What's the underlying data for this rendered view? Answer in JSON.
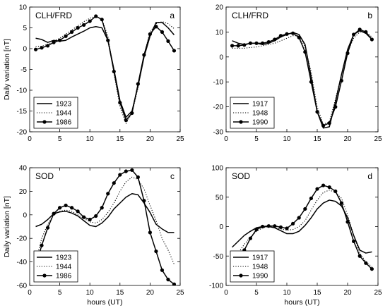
{
  "chart_data": [
    {
      "type": "line",
      "title": "CLH/FRD",
      "panel_label": "a",
      "xlabel": "",
      "ylabel": "Daily variation  [nT]",
      "xlim": [
        0,
        25
      ],
      "ylim": [
        -20,
        10
      ],
      "xticks": [
        0,
        5,
        10,
        15,
        20,
        25
      ],
      "yticks": [
        -20,
        -15,
        -10,
        -5,
        0,
        5,
        10
      ],
      "legend_position": "bottom-left",
      "series": [
        {
          "name": "1923",
          "style": "solid",
          "x": [
            1,
            2,
            3,
            4,
            5,
            6,
            7,
            8,
            9,
            10,
            11,
            12,
            13,
            14,
            15,
            16,
            17,
            18,
            19,
            20,
            21,
            22,
            23,
            24
          ],
          "values": [
            2.5,
            2.2,
            1.5,
            2.0,
            1.8,
            2.0,
            2.8,
            3.5,
            4.2,
            5.0,
            5.3,
            5.0,
            2.0,
            -5.0,
            -12.5,
            -16.5,
            -15.0,
            -9.0,
            -2.0,
            3.0,
            6.3,
            6.3,
            5.0,
            3.3
          ]
        },
        {
          "name": "1944",
          "style": "dotted",
          "x": [
            1,
            2,
            3,
            4,
            5,
            6,
            7,
            8,
            9,
            10,
            11,
            12,
            13,
            14,
            15,
            16,
            17,
            18,
            19,
            20,
            21,
            22,
            23,
            24
          ],
          "values": [
            0.5,
            0.6,
            1.0,
            1.8,
            2.5,
            3.5,
            4.5,
            5.5,
            6.5,
            7.3,
            7.8,
            7.0,
            3.0,
            -6.0,
            -14.0,
            -18.0,
            -15.5,
            -9.5,
            -1.5,
            4.0,
            6.0,
            6.5,
            6.0,
            4.8
          ]
        },
        {
          "name": "1986",
          "style": "solid-markers",
          "x": [
            1,
            2,
            3,
            4,
            5,
            6,
            7,
            8,
            9,
            10,
            11,
            12,
            13,
            14,
            15,
            16,
            17,
            18,
            19,
            20,
            21,
            22,
            23,
            24
          ],
          "values": [
            -0.2,
            0.2,
            0.7,
            1.5,
            2.0,
            3.0,
            4.0,
            5.0,
            5.7,
            6.6,
            7.8,
            7.0,
            2.0,
            -5.5,
            -13.0,
            -17.2,
            -15.5,
            -8.5,
            -1.5,
            3.5,
            5.3,
            4.0,
            1.8,
            -0.5
          ]
        }
      ]
    },
    {
      "type": "line",
      "title": "CLH/FRD",
      "panel_label": "b",
      "xlabel": "",
      "ylabel": "",
      "xlim": [
        0,
        25
      ],
      "ylim": [
        -30,
        20
      ],
      "xticks": [
        0,
        5,
        10,
        15,
        20,
        25
      ],
      "yticks": [
        -30,
        -20,
        -10,
        0,
        10,
        20
      ],
      "legend_position": "bottom-left",
      "series": [
        {
          "name": "1917",
          "style": "solid",
          "x": [
            1,
            2,
            3,
            4,
            5,
            6,
            7,
            8,
            9,
            10,
            11,
            12,
            13,
            14,
            15,
            16,
            17,
            18,
            19,
            20,
            21,
            22,
            23,
            24
          ],
          "values": [
            6.5,
            5.5,
            5.0,
            5.5,
            5.5,
            5.0,
            5.5,
            6.5,
            8.0,
            9.0,
            9.8,
            9.0,
            5.0,
            -8.0,
            -22.0,
            -28.5,
            -28.0,
            -18.0,
            -7.0,
            3.0,
            9.0,
            10.5,
            9.5,
            7.0
          ]
        },
        {
          "name": "1948",
          "style": "dotted",
          "x": [
            1,
            2,
            3,
            4,
            5,
            6,
            7,
            8,
            9,
            10,
            11,
            12,
            13,
            14,
            15,
            16,
            17,
            18,
            19,
            20,
            21,
            22,
            23,
            24
          ],
          "values": [
            3.5,
            3.5,
            3.5,
            3.8,
            4.0,
            4.5,
            5.0,
            5.5,
            6.5,
            7.5,
            8.5,
            8.5,
            4.0,
            -6.0,
            -20.0,
            -27.0,
            -26.0,
            -17.0,
            -7.0,
            2.0,
            7.5,
            10.0,
            10.0,
            8.0
          ]
        },
        {
          "name": "1990",
          "style": "solid-markers",
          "x": [
            1,
            2,
            3,
            4,
            5,
            6,
            7,
            8,
            9,
            10,
            11,
            12,
            13,
            14,
            15,
            16,
            17,
            18,
            19,
            20,
            21,
            22,
            23,
            24
          ],
          "values": [
            4.5,
            4.5,
            4.8,
            5.5,
            5.5,
            5.5,
            6.0,
            7.0,
            8.5,
            9.2,
            9.5,
            7.8,
            2.0,
            -10.0,
            -22.0,
            -27.5,
            -26.5,
            -20.0,
            -9.5,
            1.5,
            9.0,
            11.0,
            10.0,
            7.0
          ]
        }
      ]
    },
    {
      "type": "line",
      "title": "SOD",
      "panel_label": "c",
      "xlabel": "hours (UT)",
      "ylabel": "Daily variation  [nT]",
      "xlim": [
        0,
        25
      ],
      "ylim": [
        -60,
        40
      ],
      "xticks": [
        0,
        5,
        10,
        15,
        20,
        25
      ],
      "yticks": [
        -60,
        -40,
        -20,
        0,
        20,
        40
      ],
      "legend_position": "bottom-left",
      "series": [
        {
          "name": "1923",
          "style": "solid",
          "x": [
            1,
            2,
            3,
            4,
            5,
            6,
            7,
            8,
            9,
            10,
            11,
            12,
            13,
            14,
            15,
            16,
            17,
            18,
            19,
            20,
            21,
            22,
            23,
            24
          ],
          "values": [
            -10,
            -8,
            -4,
            1,
            2.5,
            3,
            1.5,
            -1,
            -5,
            -9,
            -10,
            -7,
            -2,
            5,
            10,
            15,
            18,
            17,
            10,
            2,
            -8,
            -12,
            -15,
            -15
          ]
        },
        {
          "name": "1944",
          "style": "dotted",
          "x": [
            1,
            2,
            3,
            4,
            5,
            6,
            7,
            8,
            9,
            10,
            11,
            12,
            13,
            14,
            15,
            16,
            17,
            18,
            19,
            20,
            21,
            22,
            23,
            24
          ],
          "values": [
            -40,
            -20,
            -8,
            0,
            3,
            4,
            3,
            0,
            -3,
            -6,
            -7,
            -4,
            2,
            10,
            20,
            28,
            32,
            30,
            22,
            8,
            -5,
            -20,
            -30,
            -42
          ]
        },
        {
          "name": "1986",
          "style": "solid-markers",
          "x": [
            1,
            2,
            3,
            4,
            5,
            6,
            7,
            8,
            9,
            10,
            11,
            12,
            13,
            14,
            15,
            16,
            17,
            18,
            19,
            20,
            21,
            22,
            23,
            24
          ],
          "values": [
            -44,
            -26,
            -11,
            1,
            6,
            8,
            6,
            3,
            -2,
            -4,
            -1,
            6,
            18,
            27,
            34,
            37,
            38,
            32,
            12,
            -15,
            -31,
            -47,
            -55,
            -59
          ]
        }
      ]
    },
    {
      "type": "line",
      "title": "SOD",
      "panel_label": "d",
      "xlabel": "hours (UT)",
      "ylabel": "",
      "xlim": [
        0,
        25
      ],
      "ylim": [
        -100,
        100
      ],
      "xticks": [
        0,
        5,
        10,
        15,
        20,
        25
      ],
      "yticks": [
        -100,
        -50,
        0,
        50,
        100
      ],
      "legend_position": "bottom-left",
      "series": [
        {
          "name": "1917",
          "style": "solid",
          "x": [
            1,
            2,
            3,
            4,
            5,
            6,
            7,
            8,
            9,
            10,
            11,
            12,
            13,
            14,
            15,
            16,
            17,
            18,
            19,
            20,
            21,
            22,
            23,
            24
          ],
          "values": [
            -35,
            -25,
            -15,
            -8,
            -2,
            0,
            0,
            -2,
            -7,
            -12,
            -12,
            -8,
            2,
            15,
            30,
            40,
            45,
            43,
            35,
            15,
            -15,
            -40,
            -45,
            -43
          ]
        },
        {
          "name": "1948",
          "style": "dotted",
          "x": [
            1,
            2,
            3,
            4,
            5,
            6,
            7,
            8,
            9,
            10,
            11,
            12,
            13,
            14,
            15,
            16,
            17,
            18,
            19,
            20,
            21,
            22,
            23,
            24
          ],
          "values": [
            -60,
            -45,
            -30,
            -18,
            -8,
            -2,
            0,
            -2,
            -4,
            -6,
            -5,
            0,
            10,
            28,
            45,
            58,
            62,
            58,
            48,
            20,
            -15,
            -45,
            -60,
            -68
          ]
        },
        {
          "name": "1990",
          "style": "solid-markers",
          "x": [
            1,
            2,
            3,
            4,
            5,
            6,
            7,
            8,
            9,
            10,
            11,
            12,
            13,
            14,
            15,
            16,
            17,
            18,
            19,
            20,
            21,
            22,
            23,
            24
          ],
          "values": [
            -72,
            -57,
            -40,
            -20,
            -5,
            0,
            1,
            1,
            -1,
            -3,
            5,
            15,
            30,
            48,
            64,
            70,
            67,
            60,
            40,
            8,
            -25,
            -50,
            -62,
            -72
          ]
        }
      ]
    }
  ]
}
